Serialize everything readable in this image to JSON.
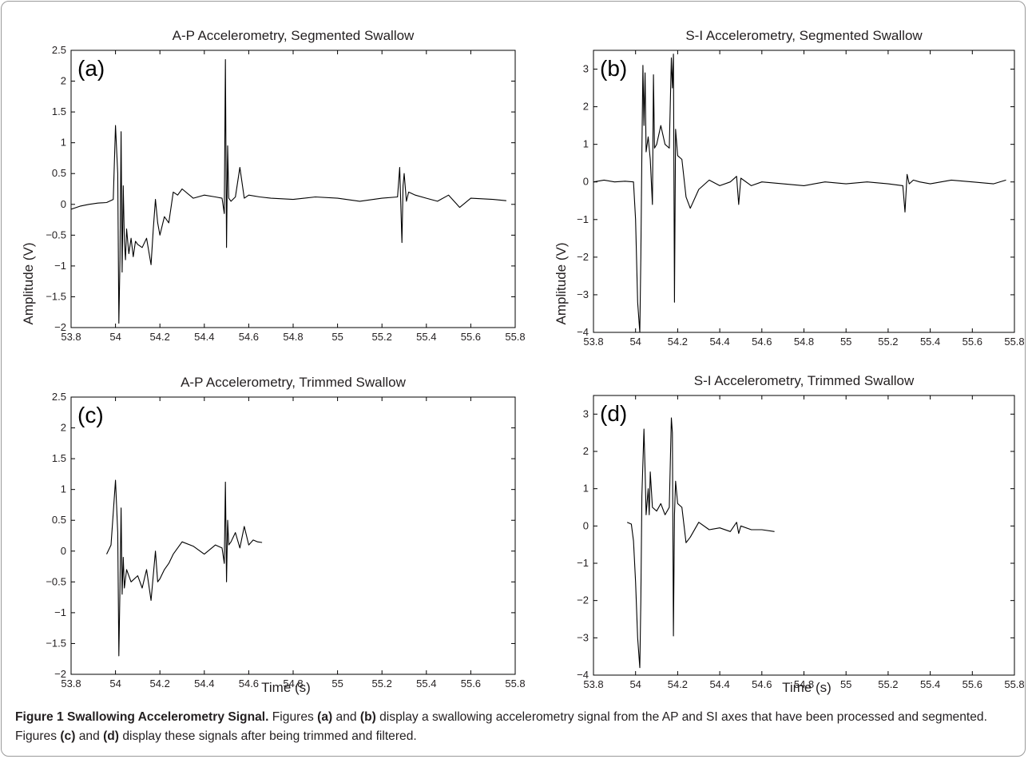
{
  "figure": {
    "shared_xlabel": "Time (s)",
    "shared_ylabel": "Amplitude (V)"
  },
  "caption": {
    "lead": "Figure 1 Swallowing Accelerometry Signal.",
    "t1": " Figures ",
    "b1": "(a)",
    "t2": " and ",
    "b2": "(b)",
    "t3": " display a swallowing accelerometry signal from the AP and SI axes that have been processed and segmented. Figures ",
    "b3": "(c)",
    "t4": " and ",
    "b4": "(d)",
    "t5": " display these signals after being trimmed and filtered."
  },
  "colors": {
    "line": "#000000",
    "axis": "#000000",
    "text": "#231f20"
  },
  "chart_data": [
    {
      "type": "line",
      "title": "A-P Accelerometry, Segmented Swallow",
      "panel_label": "(a)",
      "xlim": [
        53.8,
        55.8
      ],
      "ylim": [
        -2,
        2.5
      ],
      "xticks": [
        53.8,
        54,
        54.2,
        54.4,
        54.6,
        54.8,
        55,
        55.2,
        55.4,
        55.6,
        55.8
      ],
      "yticks": [
        -2,
        -1.5,
        -1,
        -0.5,
        0,
        0.5,
        1,
        1.5,
        2,
        2.5
      ],
      "grid": false,
      "series": [
        {
          "x": [
            53.8,
            53.84,
            53.88,
            53.92,
            53.96,
            53.99,
            54.0,
            54.01,
            54.015,
            54.02,
            54.025,
            54.03,
            54.035,
            54.04,
            54.045,
            54.05,
            54.06,
            54.07,
            54.08,
            54.09,
            54.1,
            54.12,
            54.14,
            54.16,
            54.17,
            54.18,
            54.19,
            54.2,
            54.22,
            54.24,
            54.26,
            54.28,
            54.3,
            54.35,
            54.4,
            54.45,
            54.48,
            54.49,
            54.495,
            54.5,
            54.505,
            54.51,
            54.52,
            54.54,
            54.56,
            54.58,
            54.6,
            54.65,
            54.7,
            54.8,
            54.9,
            55.0,
            55.1,
            55.2,
            55.27,
            55.28,
            55.29,
            55.295,
            55.3,
            55.31,
            55.32,
            55.35,
            55.4,
            55.45,
            55.5,
            55.55,
            55.6,
            55.7,
            55.76
          ],
          "y": [
            -0.08,
            -0.03,
            0.0,
            0.02,
            0.03,
            0.08,
            1.28,
            0.5,
            -1.93,
            -0.9,
            1.18,
            -1.1,
            0.3,
            -0.6,
            -0.9,
            -0.4,
            -0.8,
            -0.55,
            -0.85,
            -0.6,
            -0.65,
            -0.7,
            -0.55,
            -0.98,
            -0.4,
            0.08,
            -0.3,
            -0.5,
            -0.2,
            -0.3,
            0.2,
            0.15,
            0.25,
            0.1,
            0.15,
            0.12,
            0.1,
            -0.15,
            2.35,
            -0.7,
            0.95,
            0.1,
            0.05,
            0.12,
            0.6,
            0.1,
            0.15,
            0.12,
            0.1,
            0.08,
            0.12,
            0.1,
            0.05,
            0.1,
            0.12,
            0.6,
            -0.62,
            0.3,
            0.5,
            0.05,
            0.2,
            0.15,
            0.1,
            0.05,
            0.15,
            -0.05,
            0.1,
            0.08,
            0.06
          ]
        }
      ]
    },
    {
      "type": "line",
      "title": "S-I Accelerometry, Segmented Swallow",
      "panel_label": "(b)",
      "xlim": [
        53.8,
        55.8
      ],
      "ylim": [
        -4,
        3.5
      ],
      "xticks": [
        53.8,
        54,
        54.2,
        54.4,
        54.6,
        54.8,
        55,
        55.2,
        55.4,
        55.6,
        55.8
      ],
      "yticks": [
        -4,
        -3,
        -2,
        -1,
        0,
        1,
        2,
        3
      ],
      "grid": false,
      "series": [
        {
          "x": [
            53.8,
            53.85,
            53.9,
            53.95,
            53.99,
            54.0,
            54.01,
            54.02,
            54.025,
            54.03,
            54.035,
            54.04,
            54.045,
            54.05,
            54.06,
            54.07,
            54.08,
            54.085,
            54.09,
            54.1,
            54.12,
            54.14,
            54.16,
            54.17,
            54.175,
            54.18,
            54.185,
            54.19,
            54.2,
            54.22,
            54.24,
            54.26,
            54.3,
            54.35,
            54.4,
            54.45,
            54.48,
            54.49,
            54.5,
            54.55,
            54.6,
            54.7,
            54.8,
            54.9,
            55.0,
            55.1,
            55.2,
            55.27,
            55.28,
            55.29,
            55.3,
            55.32,
            55.35,
            55.4,
            55.5,
            55.6,
            55.7,
            55.76
          ],
          "y": [
            0.0,
            0.05,
            0.0,
            0.02,
            0.0,
            -1.0,
            -3.2,
            -4.0,
            -2.0,
            0.8,
            3.1,
            1.5,
            2.9,
            0.8,
            1.2,
            0.6,
            -0.6,
            2.85,
            0.9,
            1.0,
            1.5,
            1.0,
            0.9,
            3.3,
            2.5,
            3.4,
            -3.2,
            1.4,
            0.7,
            0.6,
            -0.4,
            -0.7,
            -0.2,
            0.05,
            -0.1,
            0.0,
            0.15,
            -0.6,
            0.1,
            -0.1,
            0.0,
            -0.05,
            -0.1,
            0.0,
            -0.05,
            0.0,
            -0.05,
            -0.1,
            -0.8,
            0.2,
            -0.05,
            0.05,
            0.0,
            -0.05,
            0.05,
            0.0,
            -0.05,
            0.05
          ]
        }
      ]
    },
    {
      "type": "line",
      "title": "A-P Accelerometry, Trimmed Swallow",
      "panel_label": "(c)",
      "xlim": [
        53.8,
        55.8
      ],
      "ylim": [
        -2,
        2.5
      ],
      "xticks": [
        53.8,
        54,
        54.2,
        54.4,
        54.6,
        54.8,
        55,
        55.2,
        55.4,
        55.6,
        55.8
      ],
      "yticks": [
        -2,
        -1.5,
        -1,
        -0.5,
        0,
        0.5,
        1,
        1.5,
        2,
        2.5
      ],
      "grid": false,
      "series": [
        {
          "x": [
            53.96,
            53.98,
            54.0,
            54.01,
            54.015,
            54.02,
            54.025,
            54.03,
            54.035,
            54.04,
            54.05,
            54.07,
            54.1,
            54.12,
            54.14,
            54.16,
            54.18,
            54.19,
            54.2,
            54.22,
            54.24,
            54.26,
            54.3,
            54.35,
            54.4,
            54.45,
            54.48,
            54.49,
            54.495,
            54.5,
            54.505,
            54.51,
            54.52,
            54.54,
            54.56,
            54.58,
            54.6,
            54.62,
            54.64,
            54.66
          ],
          "y": [
            -0.05,
            0.1,
            1.15,
            0.3,
            -1.7,
            -0.6,
            0.7,
            -0.7,
            -0.1,
            -0.6,
            -0.3,
            -0.5,
            -0.4,
            -0.6,
            -0.3,
            -0.8,
            0.0,
            -0.5,
            -0.45,
            -0.3,
            -0.2,
            -0.05,
            0.15,
            0.08,
            -0.05,
            0.1,
            0.05,
            -0.2,
            1.12,
            -0.5,
            0.5,
            0.1,
            0.15,
            0.3,
            0.05,
            0.4,
            0.1,
            0.18,
            0.15,
            0.14
          ]
        }
      ]
    },
    {
      "type": "line",
      "title": "S-I Accelerometry, Trimmed Swallow",
      "panel_label": "(d)",
      "xlim": [
        53.8,
        55.8
      ],
      "ylim": [
        -4,
        3.5
      ],
      "xticks": [
        53.8,
        54,
        54.2,
        54.4,
        54.6,
        54.8,
        55,
        55.2,
        55.4,
        55.6,
        55.8
      ],
      "yticks": [
        -4,
        -3,
        -2,
        -1,
        0,
        1,
        2,
        3
      ],
      "grid": false,
      "series": [
        {
          "x": [
            53.96,
            53.98,
            53.99,
            54.0,
            54.01,
            54.02,
            54.025,
            54.03,
            54.04,
            54.045,
            54.05,
            54.06,
            54.065,
            54.07,
            54.08,
            54.1,
            54.12,
            54.14,
            54.16,
            54.17,
            54.175,
            54.18,
            54.185,
            54.19,
            54.2,
            54.22,
            54.24,
            54.26,
            54.3,
            54.35,
            54.4,
            54.45,
            54.48,
            54.49,
            54.5,
            54.55,
            54.6,
            54.66
          ],
          "y": [
            0.1,
            0.05,
            -0.4,
            -1.5,
            -3.0,
            -3.8,
            -2.0,
            0.8,
            2.6,
            1.5,
            0.3,
            1.0,
            0.3,
            1.45,
            0.5,
            0.4,
            0.6,
            0.3,
            0.5,
            2.9,
            2.5,
            -2.95,
            0.3,
            1.2,
            0.6,
            0.5,
            -0.45,
            -0.3,
            0.1,
            -0.1,
            -0.05,
            -0.15,
            0.1,
            -0.2,
            0.0,
            -0.1,
            -0.1,
            -0.15
          ]
        }
      ]
    }
  ]
}
